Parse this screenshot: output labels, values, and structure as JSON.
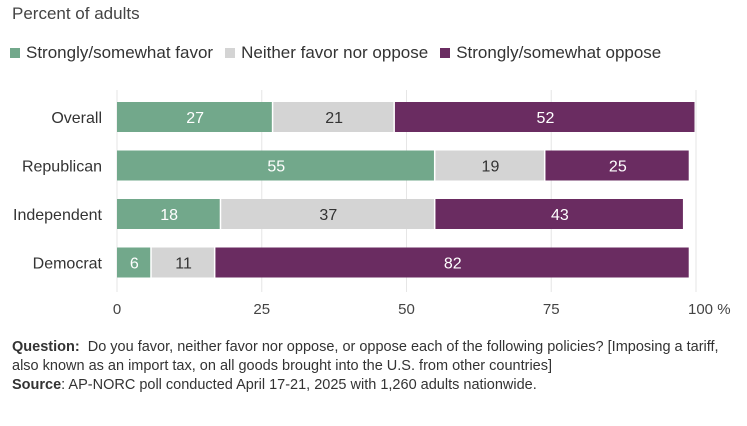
{
  "subtitle": "Percent of adults",
  "legend": [
    {
      "label": "Strongly/somewhat favor",
      "color": "#72a88b"
    },
    {
      "label": "Neither favor nor oppose",
      "color": "#d4d4d4"
    },
    {
      "label": "Strongly/somewhat oppose",
      "color": "#6a2c61"
    }
  ],
  "chart_data": {
    "type": "bar",
    "orientation": "horizontal-stacked",
    "categories": [
      "Overall",
      "Republican",
      "Independent",
      "Democrat"
    ],
    "series": [
      {
        "name": "Strongly/somewhat favor",
        "values": [
          27,
          55,
          18,
          6
        ],
        "color": "#72a88b"
      },
      {
        "name": "Neither favor nor oppose",
        "values": [
          21,
          19,
          37,
          11
        ],
        "color": "#d4d4d4"
      },
      {
        "name": "Strongly/somewhat oppose",
        "values": [
          52,
          25,
          43,
          82
        ],
        "color": "#6a2c61"
      }
    ],
    "xlim": [
      0,
      100
    ],
    "xticks": [
      "0",
      "25",
      "50",
      "75",
      "100 %"
    ],
    "xtick_values": [
      0,
      25,
      50,
      75,
      100
    ]
  },
  "footnote": {
    "question_label": "Question:",
    "question_text": "Do you favor, neither favor nor oppose, or oppose each of the following policies? [Imposing a tariff, also known as an import tax, on all goods brought into the U.S. from other countries]",
    "source_label": "Source",
    "source_text": ": AP-NORC poll conducted April 17-21, 2025 with 1,260 adults nationwide."
  }
}
